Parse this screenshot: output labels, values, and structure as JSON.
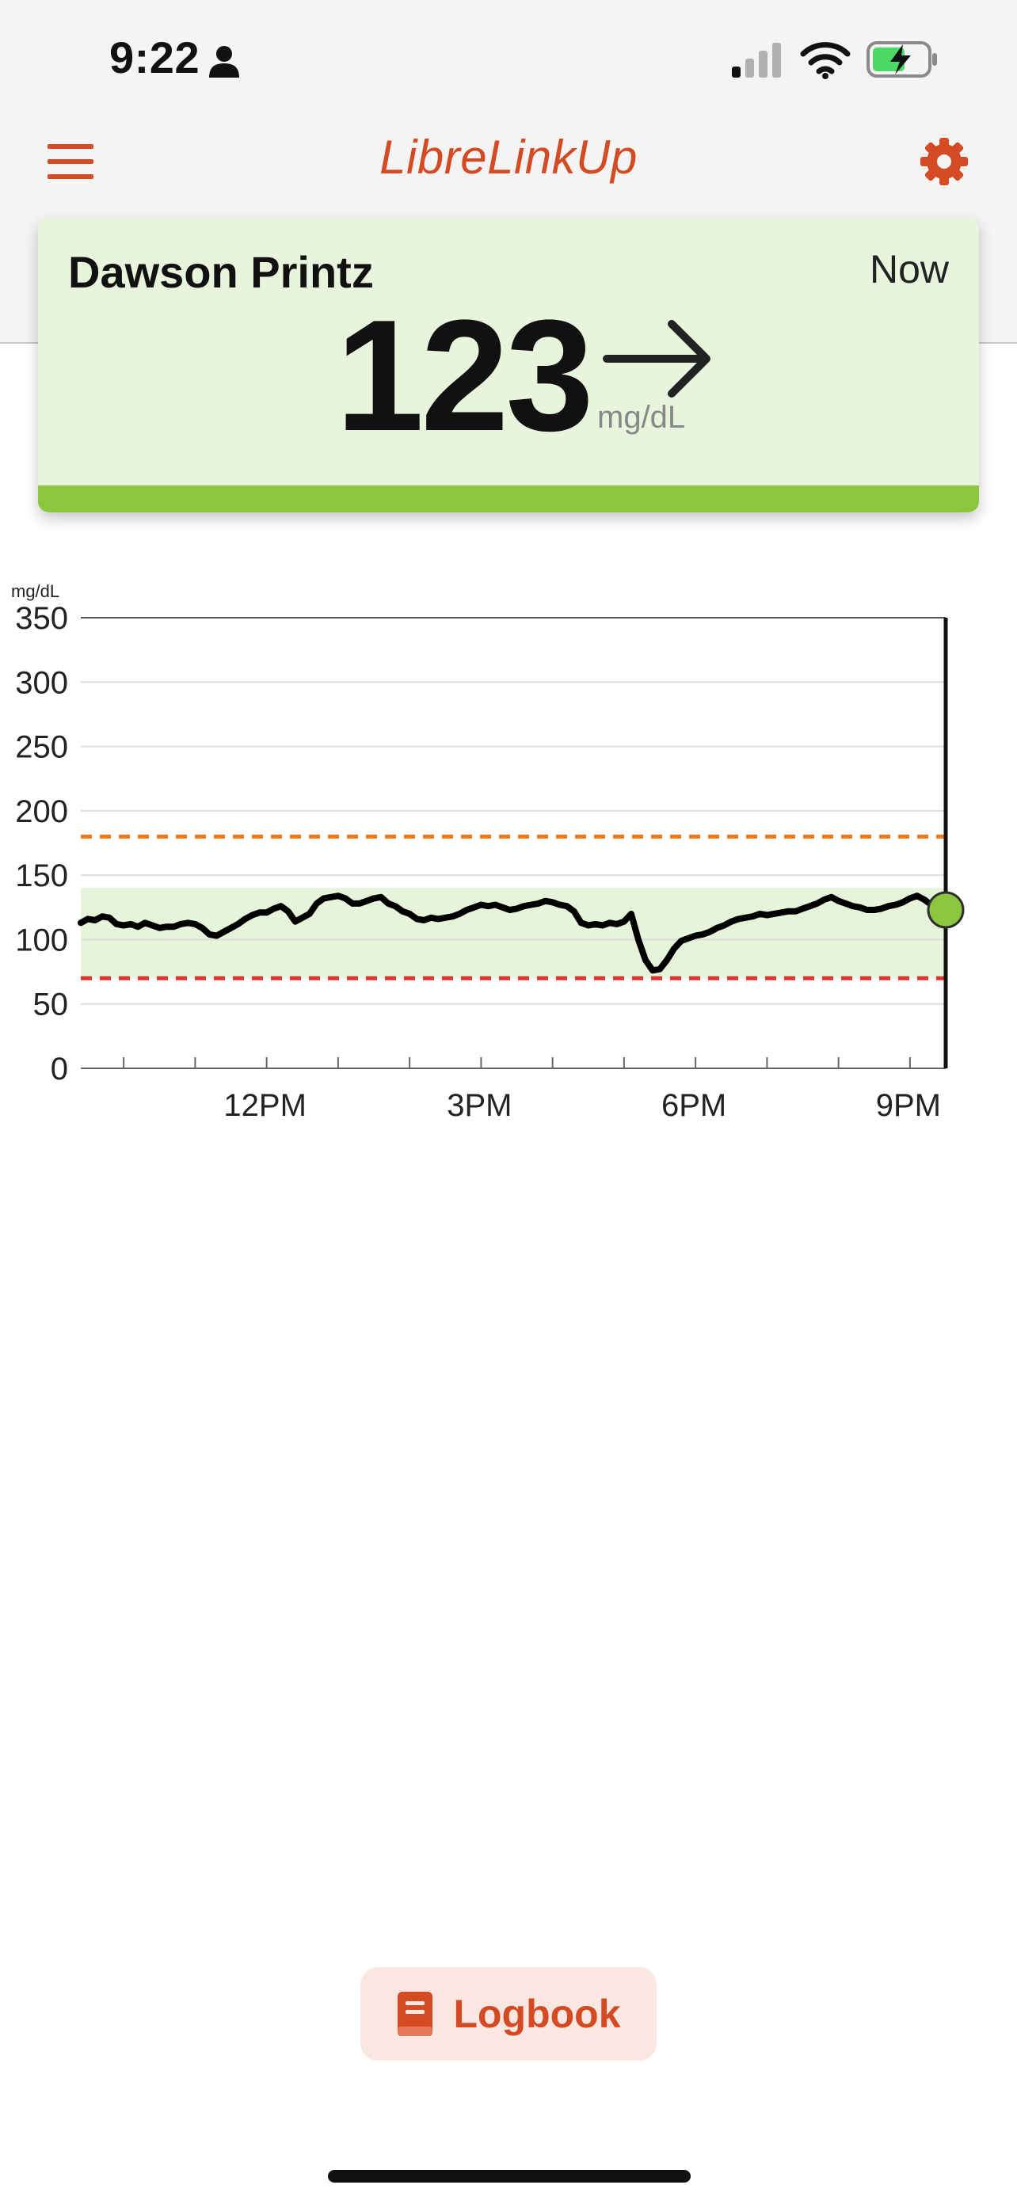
{
  "status_bar": {
    "time": "9:22",
    "icons": [
      "person-icon",
      "signal-icon",
      "wifi-icon",
      "battery-charging-icon"
    ]
  },
  "header": {
    "title": "LibreLinkUp",
    "menu_icon": "hamburger-menu-icon",
    "settings_icon": "gear-icon"
  },
  "card": {
    "name": "Dawson Printz",
    "time": "Now",
    "value": "123",
    "unit": "mg/dL",
    "trend_icon": "arrow-right-icon",
    "status_color": "#8cc63f"
  },
  "chart_data": {
    "type": "line",
    "ylabel": "mg/dL",
    "ylim": [
      0,
      350
    ],
    "y_ticks": [
      "0",
      "50",
      "100",
      "150",
      "200",
      "250",
      "300",
      "350"
    ],
    "x_ticks": [
      "12PM",
      "3PM",
      "6PM",
      "9PM"
    ],
    "xlim_hours": [
      9.4,
      21.5
    ],
    "grid": true,
    "target_range": [
      70,
      140
    ],
    "high_threshold": 180,
    "low_threshold": 70,
    "current_value": 123,
    "colors": {
      "line": "#000000",
      "target_band": "#e6f4d9",
      "high_line": "#f07a16",
      "low_line": "#e0322a",
      "current_dot": "#8cc63f"
    },
    "x": [
      9.4,
      9.5,
      9.6,
      9.7,
      9.8,
      9.9,
      10.0,
      10.1,
      10.2,
      10.3,
      10.4,
      10.5,
      10.6,
      10.7,
      10.8,
      10.9,
      11.0,
      11.1,
      11.2,
      11.3,
      11.4,
      11.5,
      11.6,
      11.7,
      11.8,
      11.9,
      12.0,
      12.1,
      12.2,
      12.3,
      12.4,
      12.5,
      12.6,
      12.7,
      12.8,
      12.9,
      13.0,
      13.1,
      13.2,
      13.3,
      13.4,
      13.5,
      13.6,
      13.7,
      13.8,
      13.9,
      14.0,
      14.1,
      14.2,
      14.3,
      14.4,
      14.5,
      14.6,
      14.7,
      14.8,
      14.9,
      15.0,
      15.1,
      15.2,
      15.3,
      15.4,
      15.5,
      15.6,
      15.7,
      15.8,
      15.9,
      16.0,
      16.1,
      16.2,
      16.3,
      16.4,
      16.5,
      16.6,
      16.7,
      16.8,
      16.9,
      17.0,
      17.1,
      17.2,
      17.3,
      17.4,
      17.5,
      17.6,
      17.7,
      17.8,
      17.9,
      18.0,
      18.1,
      18.2,
      18.3,
      18.4,
      18.5,
      18.6,
      18.7,
      18.8,
      18.9,
      19.0,
      19.1,
      19.2,
      19.3,
      19.4,
      19.5,
      19.6,
      19.7,
      19.8,
      19.9,
      20.0,
      20.1,
      20.2,
      20.3,
      20.4,
      20.5,
      20.6,
      20.7,
      20.8,
      20.9,
      21.0,
      21.1,
      21.2,
      21.3,
      21.4
    ],
    "values": [
      113,
      116,
      115,
      118,
      117,
      112,
      111,
      112,
      110,
      113,
      111,
      109,
      110,
      110,
      112,
      113,
      112,
      109,
      104,
      103,
      106,
      109,
      112,
      116,
      119,
      121,
      121,
      124,
      126,
      122,
      114,
      117,
      120,
      128,
      132,
      133,
      134,
      132,
      128,
      128,
      130,
      132,
      133,
      128,
      126,
      122,
      120,
      116,
      115,
      117,
      116,
      117,
      118,
      120,
      123,
      125,
      127,
      126,
      127,
      125,
      123,
      124,
      126,
      127,
      128,
      130,
      129,
      127,
      126,
      122,
      113,
      111,
      112,
      111,
      113,
      112,
      114,
      120,
      100,
      84,
      76,
      77,
      84,
      93,
      99,
      101,
      103,
      104,
      106,
      109,
      111,
      114,
      116,
      117,
      118,
      120,
      119,
      120,
      121,
      122,
      122,
      124,
      126,
      128,
      131,
      133,
      130,
      128,
      126,
      125,
      123,
      123,
      124,
      126,
      127,
      129,
      132,
      134,
      131,
      127,
      123
    ]
  },
  "logbook": {
    "label": "Logbook",
    "icon": "book-icon"
  }
}
